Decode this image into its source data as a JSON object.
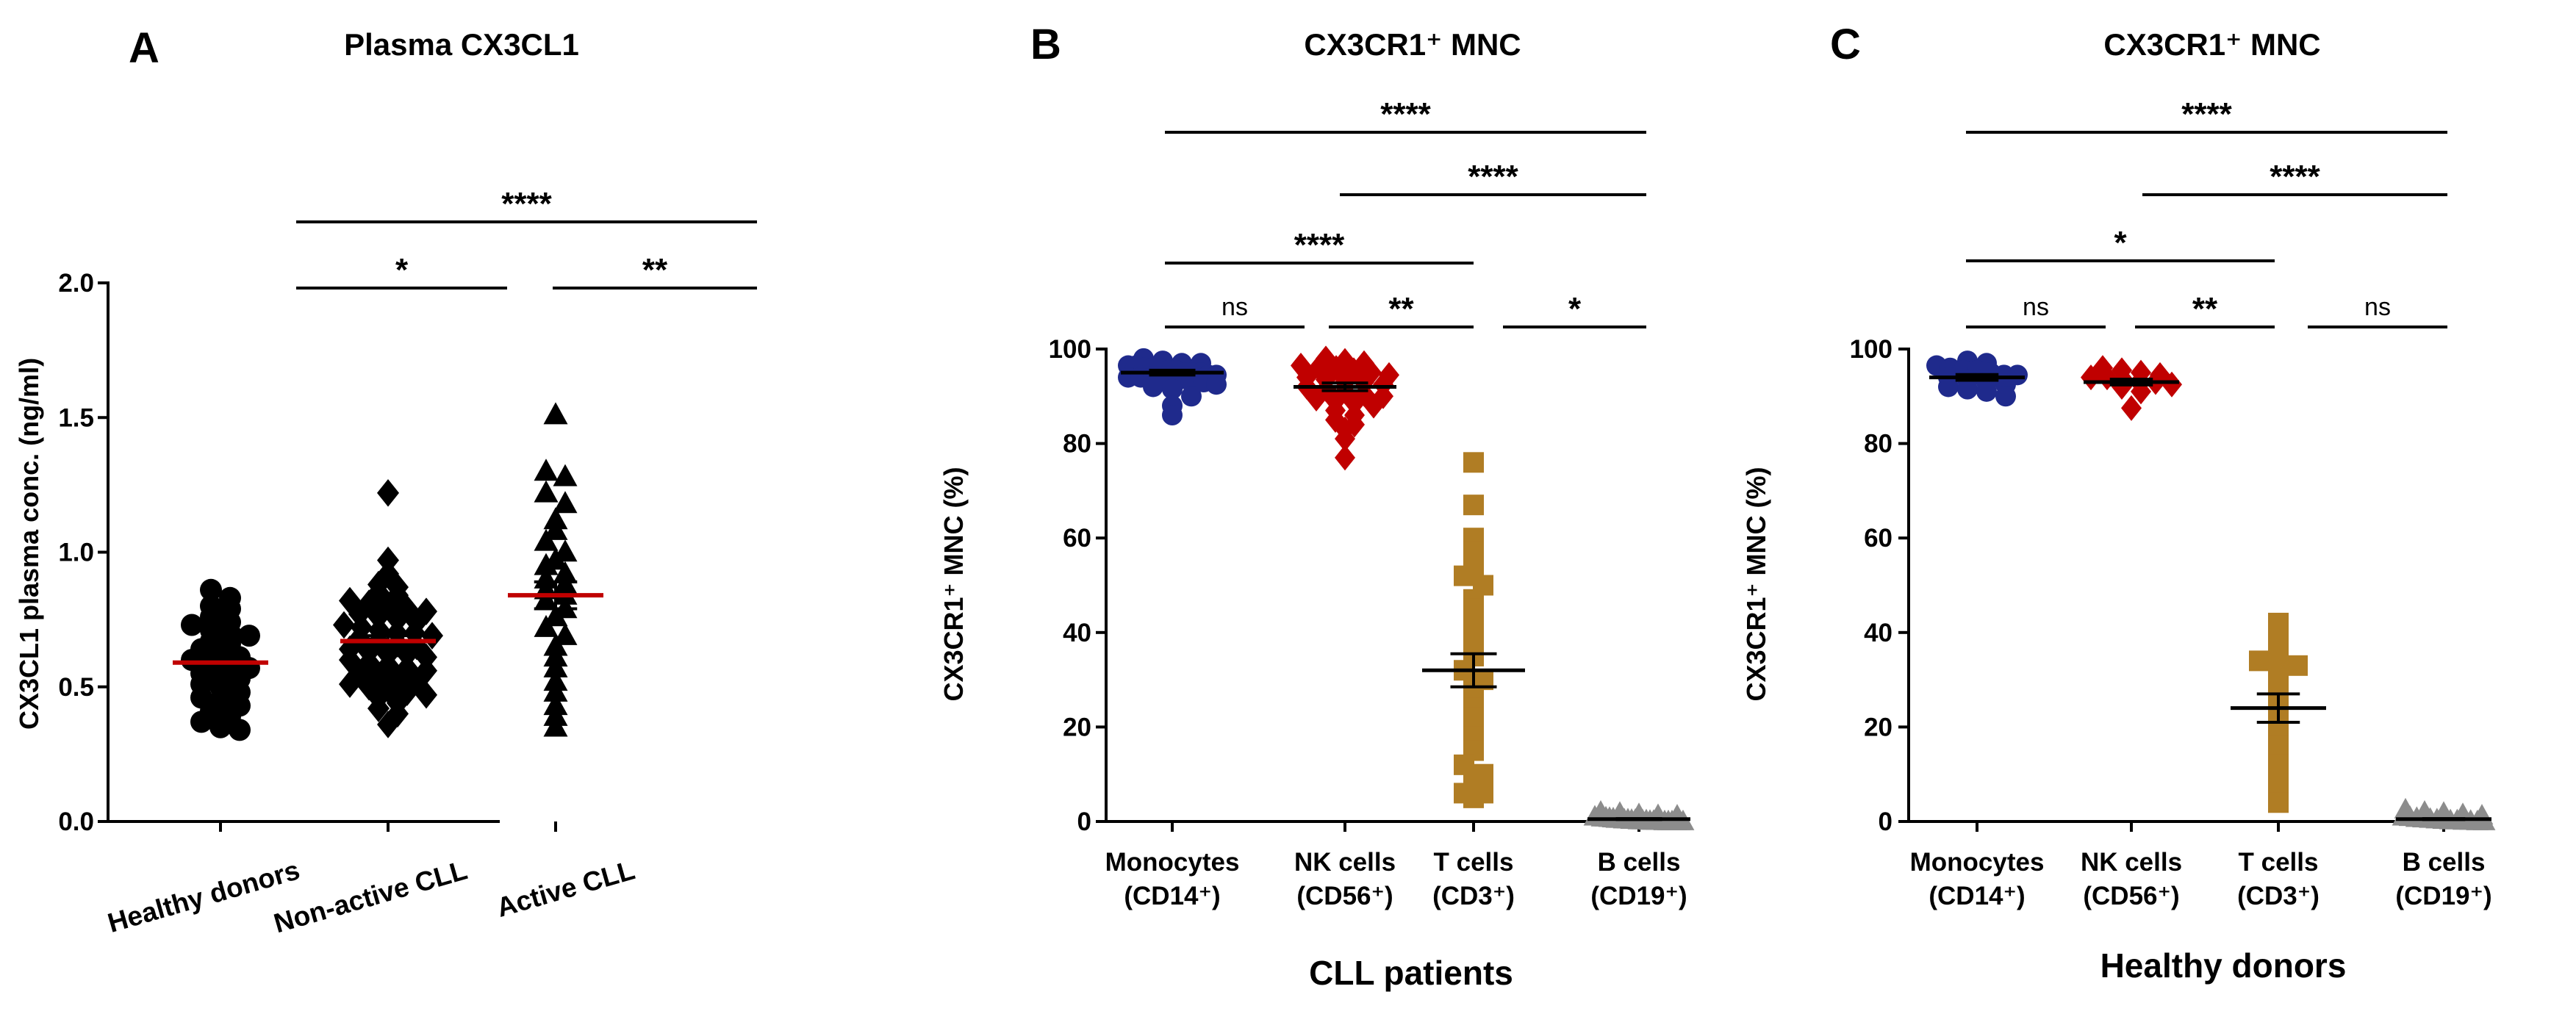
{
  "colors": {
    "black": "#000000",
    "mean_red": "#c00000",
    "monocytes": "#1f2a8c",
    "nk_cells": "#c00000",
    "t_cells": "#b07d24",
    "b_cells": "#8c8c8c"
  },
  "chart_data": [
    {
      "panel": "A",
      "type": "scatter",
      "title": "Plasma CX3CL1",
      "xlabel": "",
      "ylabel": "CX3CL1 plasma conc. (ng/ml)",
      "ylim": [
        0,
        2.0
      ],
      "yticks": [
        "0.0",
        "0.5",
        "1.0",
        "1.5",
        "2.0"
      ],
      "categories": [
        "Healthy donors",
        "Non-active CLL",
        "Active CLL"
      ],
      "marker": [
        "circle",
        "diamond",
        "triangle"
      ],
      "means": [
        0.59,
        0.67,
        0.84
      ],
      "sem": [
        0.03,
        0.02,
        0.05
      ],
      "series": [
        {
          "name": "Healthy donors",
          "values": [
            0.86,
            0.83,
            0.8,
            0.79,
            0.76,
            0.74,
            0.73,
            0.71,
            0.7,
            0.69,
            0.67,
            0.66,
            0.64,
            0.63,
            0.61,
            0.6,
            0.59,
            0.58,
            0.57,
            0.55,
            0.54,
            0.53,
            0.51,
            0.5,
            0.48,
            0.46,
            0.45,
            0.43,
            0.41,
            0.39,
            0.37,
            0.35,
            0.34
          ]
        },
        {
          "name": "Non-active CLL",
          "values": [
            1.22,
            0.97,
            0.92,
            0.88,
            0.87,
            0.85,
            0.84,
            0.82,
            0.81,
            0.8,
            0.79,
            0.78,
            0.77,
            0.76,
            0.75,
            0.74,
            0.73,
            0.72,
            0.71,
            0.7,
            0.7,
            0.69,
            0.68,
            0.67,
            0.66,
            0.65,
            0.64,
            0.63,
            0.62,
            0.62,
            0.61,
            0.6,
            0.59,
            0.58,
            0.57,
            0.56,
            0.55,
            0.54,
            0.53,
            0.52,
            0.51,
            0.5,
            0.49,
            0.48,
            0.47,
            0.46,
            0.44,
            0.42,
            0.4,
            0.36
          ]
        },
        {
          "name": "Active CLL",
          "values": [
            1.51,
            1.3,
            1.28,
            1.22,
            1.18,
            1.12,
            1.08,
            1.04,
            1.0,
            0.97,
            0.95,
            0.92,
            0.9,
            0.88,
            0.86,
            0.84,
            0.82,
            0.79,
            0.76,
            0.72,
            0.69,
            0.65,
            0.61,
            0.57,
            0.52,
            0.48,
            0.43,
            0.39,
            0.35
          ]
        }
      ],
      "significance": [
        {
          "label": "*",
          "from": 0,
          "to": 1
        },
        {
          "label": "**",
          "from": 1,
          "to": 2
        },
        {
          "label": "****",
          "from": 0,
          "to": 2
        }
      ]
    },
    {
      "panel": "B",
      "type": "scatter",
      "title": "CX3CR1⁺ MNC",
      "xlabel": "CLL patients",
      "ylabel": "CX3CR1⁺ MNC (%)",
      "ylim": [
        0,
        100
      ],
      "yticks": [
        "0",
        "20",
        "40",
        "60",
        "80",
        "100"
      ],
      "categories": [
        "Monocytes",
        "NK cells",
        "T cells",
        "B cells"
      ],
      "subcategories": [
        "(CD14⁺)",
        "(CD56⁺)",
        "(CD3⁺)",
        "(CD19⁺)"
      ],
      "marker": [
        "circle",
        "diamond",
        "square",
        "triangle"
      ],
      "means": [
        95.0,
        92.0,
        32.0,
        0.5
      ],
      "sem": [
        0.5,
        0.8,
        3.5,
        0.1
      ],
      "series": [
        {
          "name": "Monocytes",
          "values": [
            98,
            97.5,
            97,
            97,
            96.5,
            96.5,
            96,
            96,
            96,
            95.5,
            95.5,
            95,
            95,
            95,
            94.5,
            94.5,
            94,
            94,
            94,
            93.5,
            93.5,
            93,
            93,
            92.5,
            92,
            91.5,
            90,
            88,
            86
          ]
        },
        {
          "name": "NK cells",
          "values": [
            98,
            97.5,
            97,
            96.5,
            96,
            96,
            95.5,
            95,
            94.5,
            94,
            93.5,
            93,
            93,
            92.5,
            92,
            91.5,
            91,
            90.5,
            90,
            89.5,
            89,
            88.5,
            88,
            87,
            86,
            85,
            84,
            83,
            81,
            77
          ]
        },
        {
          "name": "T cells",
          "values": [
            76,
            67,
            60,
            57,
            55,
            53,
            52,
            50,
            47,
            45,
            43,
            40,
            37,
            35,
            32,
            30,
            28,
            26,
            24,
            22,
            20,
            18,
            15,
            12,
            10,
            8,
            6,
            6,
            5
          ]
        },
        {
          "name": "B cells",
          "values": [
            2,
            1.8,
            1.5,
            1.3,
            1.2,
            1.0,
            1.0,
            0.8,
            0.8,
            0.7,
            0.6,
            0.5,
            0.5,
            0.4,
            0.4,
            0.3,
            0.3,
            0.2,
            0.2,
            0.2,
            0.1,
            0.1,
            0.1,
            0.1,
            0.0,
            0.0,
            0.0,
            0.0,
            0.0,
            0.0
          ]
        }
      ],
      "significance": [
        {
          "label": "ns",
          "from": 0,
          "to": 1
        },
        {
          "label": "**",
          "from": 1,
          "to": 2
        },
        {
          "label": "*",
          "from": 2,
          "to": 3
        },
        {
          "label": "****",
          "from": 0,
          "to": 2
        },
        {
          "label": "****",
          "from": 1,
          "to": 3
        },
        {
          "label": "****",
          "from": 0,
          "to": 3
        }
      ]
    },
    {
      "panel": "C",
      "type": "scatter",
      "title": "CX3CR1⁺ MNC",
      "xlabel": "Healthy donors",
      "ylabel": "CX3CR1⁺ MNC (%)",
      "ylim": [
        0,
        100
      ],
      "yticks": [
        "0",
        "20",
        "40",
        "60",
        "80",
        "100"
      ],
      "categories": [
        "Monocytes",
        "NK cells",
        "T cells",
        "B cells"
      ],
      "subcategories": [
        "(CD14⁺)",
        "(CD56⁺)",
        "(CD3⁺)",
        "(CD19⁺)"
      ],
      "marker": [
        "circle",
        "diamond",
        "square",
        "triangle"
      ],
      "means": [
        94.0,
        93.0,
        24.0,
        0.5
      ],
      "sem": [
        0.6,
        0.6,
        3.0,
        0.1
      ],
      "series": [
        {
          "name": "Monocytes",
          "values": [
            97.5,
            97,
            96.5,
            96,
            95.5,
            95.5,
            95,
            94.5,
            94.5,
            94,
            93.5,
            93,
            92.5,
            92,
            91.5,
            91,
            90
          ]
        },
        {
          "name": "NK cells",
          "values": [
            96,
            95.5,
            95,
            94.5,
            94,
            94,
            93.5,
            93,
            93,
            92.5,
            92,
            91,
            87.5
          ]
        },
        {
          "name": "T cells",
          "values": [
            42,
            40,
            38,
            34,
            34,
            33,
            31,
            28,
            25,
            22,
            19,
            16,
            12,
            8,
            4
          ]
        },
        {
          "name": "B cells",
          "values": [
            2.5,
            2,
            1.8,
            1.5,
            1.2,
            1.0,
            0.9,
            0.7,
            0.6,
            0.5,
            0.4,
            0.3,
            0.2,
            0.2,
            0.1,
            0.1,
            0.0,
            0.0
          ]
        }
      ],
      "significance": [
        {
          "label": "ns",
          "from": 0,
          "to": 1
        },
        {
          "label": "**",
          "from": 1,
          "to": 2
        },
        {
          "label": "ns",
          "from": 2,
          "to": 3
        },
        {
          "label": "*",
          "from": 0,
          "to": 2
        },
        {
          "label": "****",
          "from": 1,
          "to": 3
        },
        {
          "label": "****",
          "from": 0,
          "to": 3
        }
      ]
    }
  ]
}
